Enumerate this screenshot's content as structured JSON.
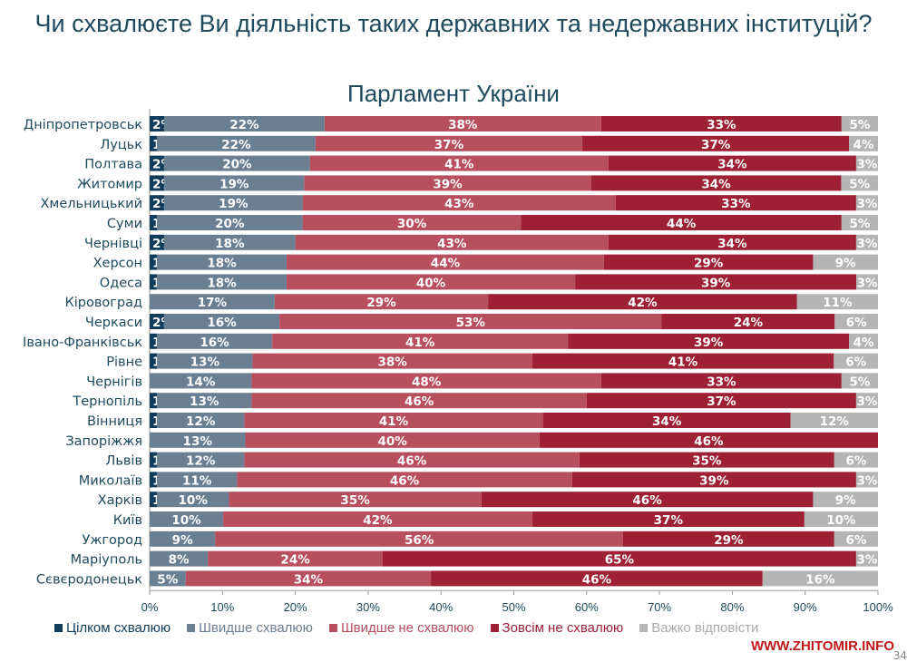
{
  "chart_data": {
    "type": "bar",
    "orientation": "horizontal-stacked-100",
    "title": "Чи схвалюєте Ви діяльність таких державних та недержавних інституцій?",
    "subtitle": "Парламент України",
    "xlim": [
      0,
      100
    ],
    "xticks": [
      "0%",
      "10%",
      "20%",
      "30%",
      "40%",
      "50%",
      "60%",
      "70%",
      "80%",
      "90%",
      "100%"
    ],
    "legend_position": "bottom",
    "categories": [
      "Дніпропетровськ",
      "Луцьк",
      "Полтава",
      "Житомир",
      "Хмельницький",
      "Суми",
      "Чернівці",
      "Херсон",
      "Одеса",
      "Кіровоград",
      "Черкаси",
      "Івано-Франківськ",
      "Рівне",
      "Чернігів",
      "Тернопіль",
      "Вінниця",
      "Запоріжжя",
      "Львів",
      "Миколаїв",
      "Харків",
      "Київ",
      "Ужгород",
      "Маріуполь",
      "Сєвєродонецьк"
    ],
    "series": [
      {
        "name": "Цілком схвалюю",
        "color": "#123d5a",
        "values": [
          2,
          1,
          2,
          2,
          2,
          1,
          2,
          1,
          1,
          0,
          2,
          1,
          1,
          0,
          1,
          1,
          0,
          1,
          1,
          1,
          0,
          0,
          0,
          0
        ]
      },
      {
        "name": "Швидше схвалюю",
        "color": "#6b7f93",
        "values": [
          22,
          22,
          20,
          19,
          19,
          20,
          18,
          18,
          18,
          17,
          16,
          16,
          13,
          14,
          13,
          12,
          13,
          12,
          11,
          10,
          10,
          9,
          8,
          5
        ]
      },
      {
        "name": "Швидше не схвалюю",
        "color": "#b84f5f",
        "values": [
          38,
          37,
          41,
          39,
          43,
          30,
          43,
          44,
          40,
          29,
          53,
          41,
          38,
          48,
          46,
          41,
          40,
          46,
          46,
          35,
          42,
          56,
          24,
          34
        ]
      },
      {
        "name": "Зовсім не схвалюю",
        "color": "#9d2034",
        "values": [
          33,
          37,
          34,
          34,
          33,
          44,
          34,
          29,
          39,
          42,
          24,
          39,
          41,
          33,
          37,
          34,
          46,
          35,
          39,
          46,
          37,
          29,
          65,
          46
        ]
      },
      {
        "name": "Важко відповісти",
        "color": "#b5b5b5",
        "values": [
          5,
          4,
          3,
          5,
          3,
          5,
          3,
          9,
          3,
          11,
          6,
          4,
          6,
          5,
          3,
          12,
          0,
          6,
          3,
          9,
          10,
          6,
          3,
          16
        ]
      }
    ]
  },
  "watermark": "WWW.ZHITOMIR.INFO",
  "page_number": "34"
}
